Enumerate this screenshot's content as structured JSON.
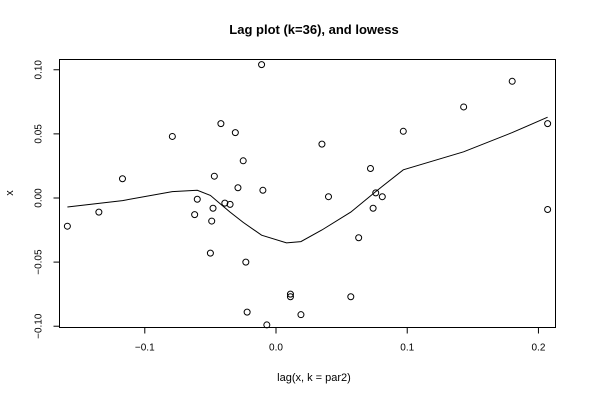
{
  "chart_data": {
    "type": "scatter",
    "title": "Lag plot (k=36), and lowess",
    "xlabel": "lag(x, k = par2)",
    "ylabel": "x",
    "xlim": [
      -0.165,
      0.213
    ],
    "ylim": [
      -0.101,
      0.108
    ],
    "xticks": [
      -0.1,
      0.0,
      0.1,
      0.2
    ],
    "xtick_labels": [
      "−0.1",
      "0.0",
      "0.1",
      "0.2"
    ],
    "yticks": [
      -0.1,
      -0.05,
      0.0,
      0.05,
      0.1
    ],
    "ytick_labels": [
      "−0.10",
      "−0.05",
      "0.00",
      "0.05",
      "0.10"
    ],
    "grid": false,
    "points": [
      {
        "x": -0.159,
        "y": -0.022
      },
      {
        "x": -0.135,
        "y": -0.011
      },
      {
        "x": -0.117,
        "y": 0.015
      },
      {
        "x": -0.079,
        "y": 0.048
      },
      {
        "x": -0.062,
        "y": -0.013
      },
      {
        "x": -0.06,
        "y": -0.001
      },
      {
        "x": -0.05,
        "y": -0.043
      },
      {
        "x": -0.049,
        "y": -0.018
      },
      {
        "x": -0.048,
        "y": -0.008
      },
      {
        "x": -0.047,
        "y": 0.017
      },
      {
        "x": -0.042,
        "y": 0.058
      },
      {
        "x": -0.039,
        "y": -0.004
      },
      {
        "x": -0.035,
        "y": -0.005
      },
      {
        "x": -0.031,
        "y": 0.051
      },
      {
        "x": -0.029,
        "y": 0.008
      },
      {
        "x": -0.025,
        "y": 0.029
      },
      {
        "x": -0.023,
        "y": -0.05
      },
      {
        "x": -0.022,
        "y": -0.089
      },
      {
        "x": -0.011,
        "y": 0.104
      },
      {
        "x": -0.01,
        "y": 0.006
      },
      {
        "x": -0.007,
        "y": -0.099
      },
      {
        "x": 0.011,
        "y": -0.075
      },
      {
        "x": 0.011,
        "y": -0.077
      },
      {
        "x": 0.019,
        "y": -0.091
      },
      {
        "x": 0.035,
        "y": 0.042
      },
      {
        "x": 0.04,
        "y": 0.001
      },
      {
        "x": 0.057,
        "y": -0.077
      },
      {
        "x": 0.063,
        "y": -0.031
      },
      {
        "x": 0.072,
        "y": 0.023
      },
      {
        "x": 0.074,
        "y": -0.008
      },
      {
        "x": 0.076,
        "y": 0.004
      },
      {
        "x": 0.081,
        "y": 0.001
      },
      {
        "x": 0.097,
        "y": 0.052
      },
      {
        "x": 0.143,
        "y": 0.071
      },
      {
        "x": 0.18,
        "y": 0.091
      },
      {
        "x": 0.207,
        "y": 0.058
      },
      {
        "x": 0.207,
        "y": -0.009
      }
    ],
    "lowess": [
      {
        "x": -0.159,
        "y": -0.007
      },
      {
        "x": -0.117,
        "y": -0.002
      },
      {
        "x": -0.079,
        "y": 0.005
      },
      {
        "x": -0.06,
        "y": 0.006
      },
      {
        "x": -0.05,
        "y": 0.002
      },
      {
        "x": -0.042,
        "y": -0.005
      },
      {
        "x": -0.035,
        "y": -0.011
      },
      {
        "x": -0.025,
        "y": -0.019
      },
      {
        "x": -0.011,
        "y": -0.029
      },
      {
        "x": 0.008,
        "y": -0.035
      },
      {
        "x": 0.019,
        "y": -0.034
      },
      {
        "x": 0.035,
        "y": -0.025
      },
      {
        "x": 0.057,
        "y": -0.011
      },
      {
        "x": 0.076,
        "y": 0.005
      },
      {
        "x": 0.097,
        "y": 0.022
      },
      {
        "x": 0.143,
        "y": 0.036
      },
      {
        "x": 0.18,
        "y": 0.051
      },
      {
        "x": 0.207,
        "y": 0.063
      }
    ]
  }
}
